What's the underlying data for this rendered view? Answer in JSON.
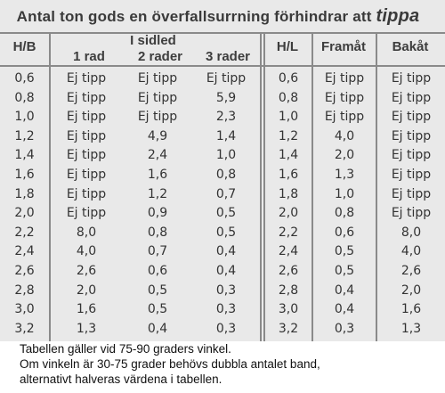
{
  "title": {
    "text": "Antal ton gods en överfallsurrning förhindrar att",
    "emphasis": "tippa"
  },
  "headers": {
    "hb": "H/B",
    "sidled": "I sidled",
    "rad1": "1 rad",
    "rad2": "2 rader",
    "rad3": "3 rader",
    "hl": "H/L",
    "framat": "Framåt",
    "bakat": "Bakåt"
  },
  "rows": [
    {
      "hb": "0,6",
      "r1": "Ej tipp",
      "r2": "Ej tipp",
      "r3": "Ej tipp",
      "hl": "0,6",
      "fram": "Ej tipp",
      "bak": "Ej tipp"
    },
    {
      "hb": "0,8",
      "r1": "Ej tipp",
      "r2": "Ej tipp",
      "r3": "5,9",
      "hl": "0,8",
      "fram": "Ej tipp",
      "bak": "Ej tipp"
    },
    {
      "hb": "1,0",
      "r1": "Ej tipp",
      "r2": "Ej tipp",
      "r3": "2,3",
      "hl": "1,0",
      "fram": "Ej tipp",
      "bak": "Ej tipp"
    },
    {
      "hb": "1,2",
      "r1": "Ej tipp",
      "r2": "4,9",
      "r3": "1,4",
      "hl": "1,2",
      "fram": "4,0",
      "bak": "Ej tipp"
    },
    {
      "hb": "1,4",
      "r1": "Ej tipp",
      "r2": "2,4",
      "r3": "1,0",
      "hl": "1,4",
      "fram": "2,0",
      "bak": "Ej tipp"
    },
    {
      "hb": "1,6",
      "r1": "Ej tipp",
      "r2": "1,6",
      "r3": "0,8",
      "hl": "1,6",
      "fram": "1,3",
      "bak": "Ej tipp"
    },
    {
      "hb": "1,8",
      "r1": "Ej tipp",
      "r2": "1,2",
      "r3": "0,7",
      "hl": "1,8",
      "fram": "1,0",
      "bak": "Ej tipp"
    },
    {
      "hb": "2,0",
      "r1": "Ej tipp",
      "r2": "0,9",
      "r3": "0,5",
      "hl": "2,0",
      "fram": "0,8",
      "bak": "Ej tipp"
    },
    {
      "hb": "2,2",
      "r1": "8,0",
      "r2": "0,8",
      "r3": "0,5",
      "hl": "2,2",
      "fram": "0,6",
      "bak": "8,0"
    },
    {
      "hb": "2,4",
      "r1": "4,0",
      "r2": "0,7",
      "r3": "0,4",
      "hl": "2,4",
      "fram": "0,5",
      "bak": "4,0"
    },
    {
      "hb": "2,6",
      "r1": "2,6",
      "r2": "0,6",
      "r3": "0,4",
      "hl": "2,6",
      "fram": "0,5",
      "bak": "2,6"
    },
    {
      "hb": "2,8",
      "r1": "2,0",
      "r2": "0,5",
      "r3": "0,3",
      "hl": "2,8",
      "fram": "0,4",
      "bak": "2,0"
    },
    {
      "hb": "3,0",
      "r1": "1,6",
      "r2": "0,5",
      "r3": "0,3",
      "hl": "3,0",
      "fram": "0,4",
      "bak": "1,6"
    },
    {
      "hb": "3,2",
      "r1": "1,3",
      "r2": "0,4",
      "r3": "0,3",
      "hl": "3,2",
      "fram": "0,3",
      "bak": "1,3"
    }
  ],
  "caption": {
    "line1": "Tabellen gäller vid 75-90 graders vinkel.",
    "line2": "Om vinkeln är 30-75 grader  behövs dubbla antalet band,",
    "line3": "alternativt halveras värdena i tabellen."
  }
}
